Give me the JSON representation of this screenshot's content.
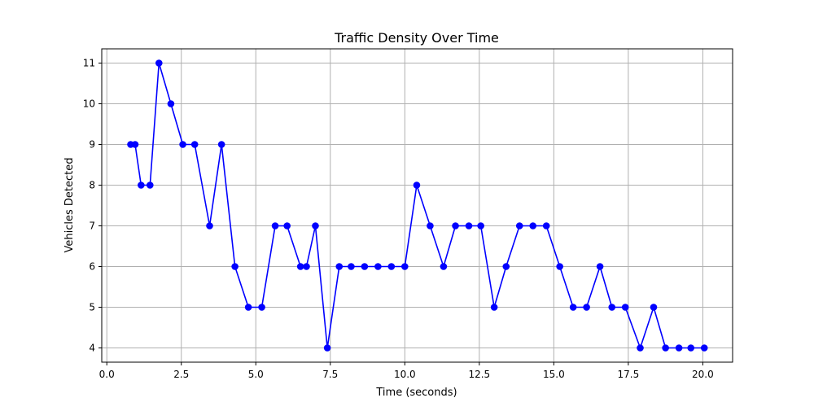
{
  "chart_data": {
    "type": "line",
    "title": "Traffic Density Over Time",
    "xlabel": "Time (seconds)",
    "ylabel": "Vehicles Detected",
    "xlim": [
      -0.17,
      21.0
    ],
    "ylim": [
      3.65,
      11.35
    ],
    "xticks": [
      0.0,
      2.5,
      5.0,
      7.5,
      10.0,
      12.5,
      15.0,
      17.5,
      20.0
    ],
    "xtick_labels": [
      "0.0",
      "2.5",
      "5.0",
      "7.5",
      "10.0",
      "12.5",
      "15.0",
      "17.5",
      "20.0"
    ],
    "yticks": [
      4,
      5,
      6,
      7,
      8,
      9,
      10,
      11
    ],
    "ytick_labels": [
      "4",
      "5",
      "6",
      "7",
      "8",
      "9",
      "10",
      "11"
    ],
    "grid": true,
    "legend": "none",
    "series": [
      {
        "color": "#0000ff",
        "marker": "circle",
        "x": [
          0.8,
          0.95,
          1.15,
          1.45,
          1.75,
          2.15,
          2.55,
          2.95,
          3.45,
          3.85,
          4.3,
          4.75,
          5.2,
          5.65,
          6.05,
          6.5,
          6.7,
          7.0,
          7.4,
          7.8,
          8.2,
          8.65,
          9.1,
          9.55,
          10.0,
          10.4,
          10.85,
          11.3,
          11.7,
          12.15,
          12.55,
          13.0,
          13.4,
          13.85,
          14.3,
          14.75,
          15.2,
          15.65,
          16.1,
          16.55,
          16.95,
          17.4,
          17.9,
          18.35,
          18.75,
          19.2,
          19.6,
          20.05
        ],
        "y": [
          9,
          9,
          8,
          8,
          11,
          10,
          9,
          9,
          7,
          9,
          6,
          5,
          5,
          7,
          7,
          6,
          6,
          7,
          4,
          6,
          6,
          6,
          6,
          6,
          6,
          8,
          7,
          6,
          7,
          7,
          7,
          5,
          6,
          7,
          7,
          7,
          6,
          5,
          5,
          6,
          5,
          5,
          4,
          5,
          4,
          4,
          4,
          4
        ]
      }
    ]
  }
}
